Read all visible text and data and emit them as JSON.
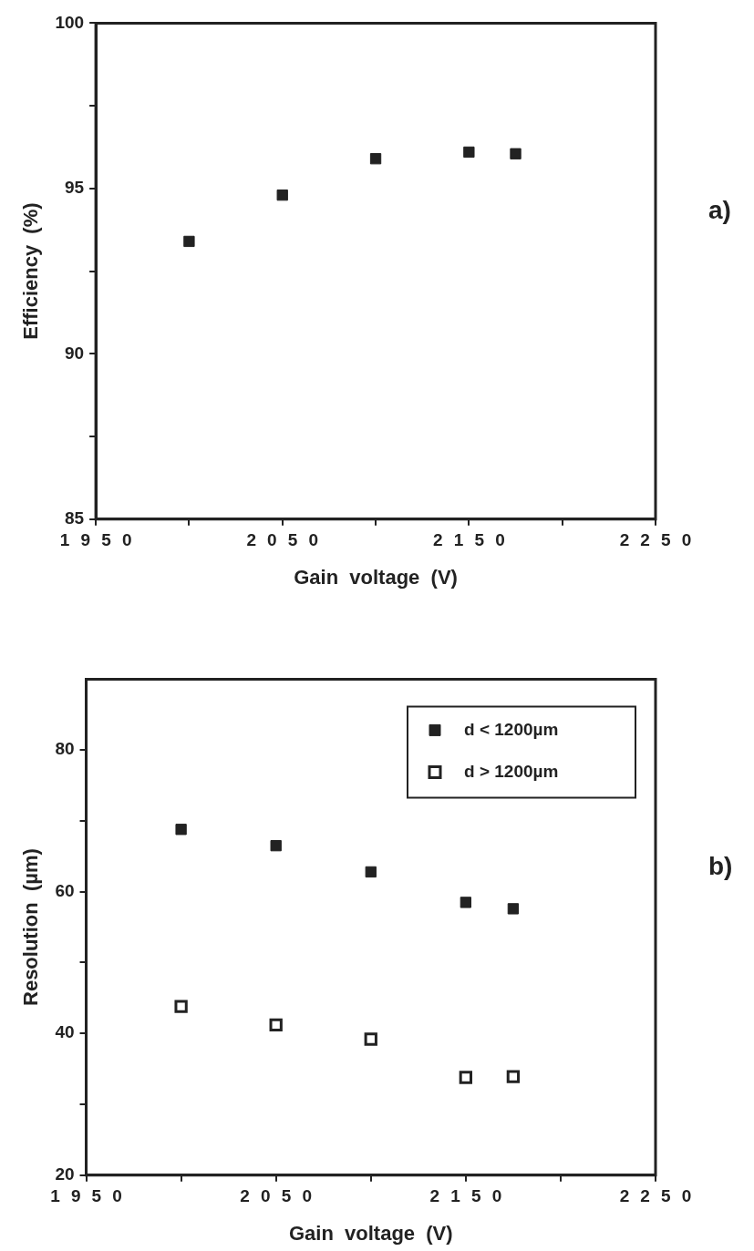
{
  "chart_data": [
    {
      "type": "scatter",
      "xlabel": "Gain  voltage  (V)",
      "ylabel": "Efficiency  (%)",
      "x": [
        2000,
        2050,
        2100,
        2150,
        2175
      ],
      "values": [
        93.4,
        94.8,
        95.9,
        96.1,
        96.05
      ],
      "color": "#222222",
      "marker": "square",
      "xlim": [
        1950,
        2250
      ],
      "xticks": [
        1950,
        {
          "value": 2000,
          "label": null
        },
        2050,
        {
          "value": 2100,
          "label": null
        },
        2150,
        {
          "value": 2200,
          "label": null
        },
        2250
      ],
      "ylim": [
        85,
        100
      ],
      "yticks": [
        85,
        {
          "value": 87.5,
          "label": null
        },
        90,
        {
          "value": 92.5,
          "label": null
        },
        95,
        {
          "value": 97.5,
          "label": null
        },
        100
      ],
      "annotations": [
        "a)"
      ]
    },
    {
      "type": "scatter",
      "xlabel": "Gain  voltage  (V)",
      "ylabel": "Resolution  (µm)",
      "x": [
        2000,
        2050,
        2100,
        2150,
        2175
      ],
      "series": [
        {
          "name": "d < 1200µm",
          "color": "#222222",
          "values": [
            68.8,
            66.5,
            62.8,
            58.5,
            57.6
          ]
        },
        {
          "name": "d > 1200µm",
          "color": "#222222",
          "values": [
            43.8,
            41.2,
            39.2,
            33.8,
            33.9
          ]
        }
      ],
      "marker": "square",
      "legend": "top right",
      "xlim": [
        1950,
        2250
      ],
      "xticks": [
        1950,
        {
          "value": 2000,
          "label": null
        },
        2050,
        {
          "value": 2100,
          "label": null
        },
        2150,
        {
          "value": 2200,
          "label": null
        },
        2250
      ],
      "ylim": [
        20,
        90
      ],
      "yticks": [
        20,
        {
          "value": 30,
          "label": null
        },
        40,
        {
          "value": 50,
          "label": null
        },
        60,
        {
          "value": 70,
          "label": null
        },
        80
      ],
      "annotations": [
        "b)"
      ]
    }
  ]
}
